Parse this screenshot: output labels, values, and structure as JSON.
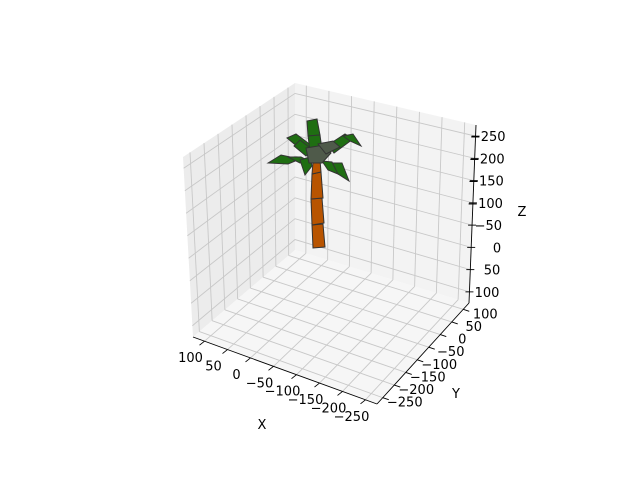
{
  "chart_data": {
    "type": "surface3d",
    "title": "",
    "xlabel": "X",
    "ylabel": "Y",
    "zlabel": "Z",
    "x_ticks": [
      "100",
      "50",
      "0",
      "−50",
      "−100",
      "−150",
      "−200",
      "−250"
    ],
    "y_ticks": [
      "100",
      "50",
      "0",
      "−50",
      "−100",
      "−150",
      "−200",
      "−250"
    ],
    "z_ticks": [
      "−250",
      "−200",
      "−150",
      "−100",
      "−50",
      "0",
      "50",
      "100"
    ],
    "xlim": [
      100,
      -250
    ],
    "ylim": [
      100,
      -250
    ],
    "zlim": [
      100,
      -250
    ],
    "grid": true,
    "colors": {
      "trunk": "#b85400",
      "leaves": "#1f6e12",
      "crown": "#4f5a4a",
      "edges": "#333333"
    },
    "surfaces": [
      {
        "name": "trunk",
        "description": "segmented palm trunk"
      },
      {
        "name": "leaves",
        "description": "palm fronds"
      }
    ]
  }
}
